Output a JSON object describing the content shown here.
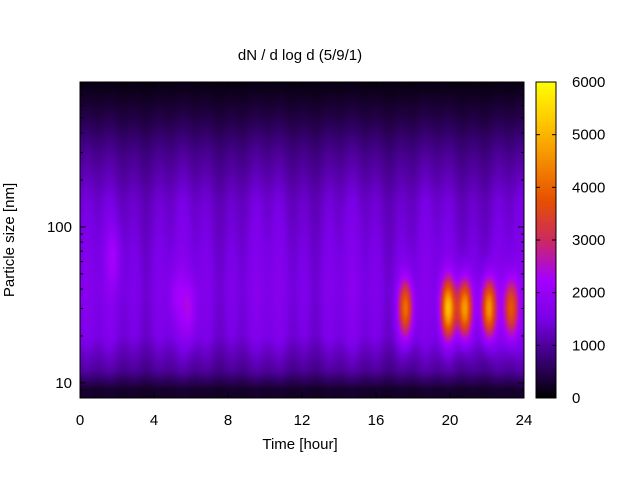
{
  "chart_data": {
    "type": "heatmap",
    "title": "dN / d log d (5/9/1)",
    "xlabel": "Time [hour]",
    "ylabel": "Particle size [nm]",
    "xlim": [
      0,
      24
    ],
    "ylim": [
      8,
      850
    ],
    "y_scale": "log",
    "x_ticks": [
      0,
      4,
      8,
      12,
      16,
      20,
      24
    ],
    "x_tick_labels": [
      "0",
      "4",
      "8",
      "12",
      "16",
      "20",
      "24"
    ],
    "y_ticks": [
      10,
      100
    ],
    "y_tick_labels": [
      "10",
      "100"
    ],
    "colorbar": {
      "range": [
        0,
        6000
      ],
      "ticks": [
        0,
        1000,
        2000,
        3000,
        4000,
        5000,
        6000
      ],
      "tick_labels": [
        "0",
        "1000",
        "2000",
        "3000",
        "4000",
        "5000",
        "6000"
      ],
      "palette": [
        "#000000",
        "#3a0077",
        "#7a00e6",
        "#a600ff",
        "#cc2a60",
        "#e65000",
        "#f58c00",
        "#ffc800",
        "#ffff00"
      ]
    },
    "grid": false,
    "legend": "none",
    "background_level": {
      "d_nm": [
        9,
        12,
        20,
        40,
        70,
        150,
        300,
        500,
        800
      ],
      "value": [
        300,
        1100,
        1700,
        1800,
        1700,
        1500,
        1000,
        500,
        150
      ]
    },
    "features": [
      {
        "t": 1.8,
        "d_nm": 65,
        "peak": 2300
      },
      {
        "t": 5.2,
        "d_nm": 35,
        "peak": 2200
      },
      {
        "t": 5.9,
        "d_nm": 30,
        "peak": 2400
      },
      {
        "t": 17.6,
        "d_nm": 30,
        "peak": 4300
      },
      {
        "t": 19.9,
        "d_nm": 30,
        "peak": 5200
      },
      {
        "t": 20.8,
        "d_nm": 30,
        "peak": 5000
      },
      {
        "t": 22.1,
        "d_nm": 30,
        "peak": 4900
      },
      {
        "t": 23.3,
        "d_nm": 30,
        "peak": 4000
      }
    ]
  }
}
